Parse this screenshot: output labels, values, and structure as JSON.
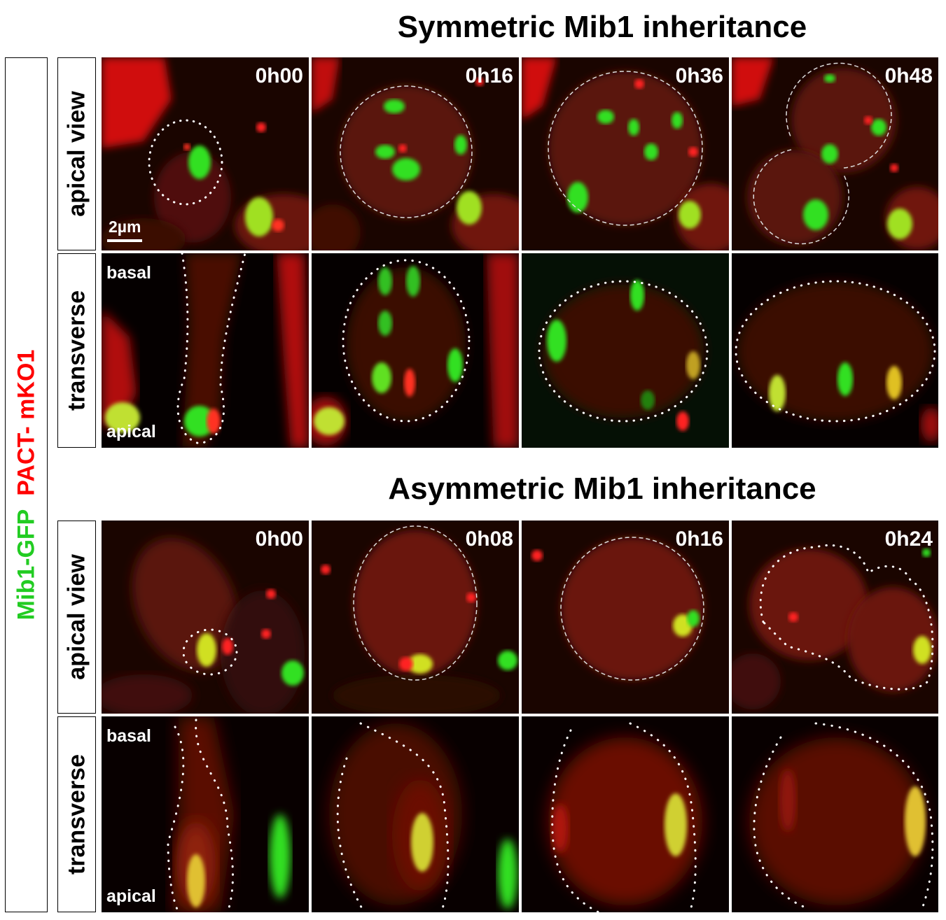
{
  "figure": {
    "side_label": {
      "green_part": "Mib1-GFP",
      "red_part": "PACT- mKO1"
    },
    "colors": {
      "green": "#22cc22",
      "red": "#ff0000",
      "background": "#000000",
      "annotation": "#ffffff"
    },
    "sections": [
      {
        "title": "Symmetric Mib1 inheritance",
        "rows": [
          {
            "label": "apical view",
            "timestamps": [
              "0h00",
              "0h16",
              "0h36",
              "0h48"
            ],
            "scale_bar": "2µm"
          },
          {
            "label": "transverse",
            "top_word": "basal",
            "bottom_word": "apical"
          }
        ]
      },
      {
        "title": "Asymmetric Mib1 inheritance",
        "rows": [
          {
            "label": "apical view",
            "timestamps": [
              "0h00",
              "0h08",
              "0h16",
              "0h24"
            ]
          },
          {
            "label": "transverse",
            "top_word": "basal",
            "bottom_word": "apical"
          }
        ]
      }
    ]
  }
}
